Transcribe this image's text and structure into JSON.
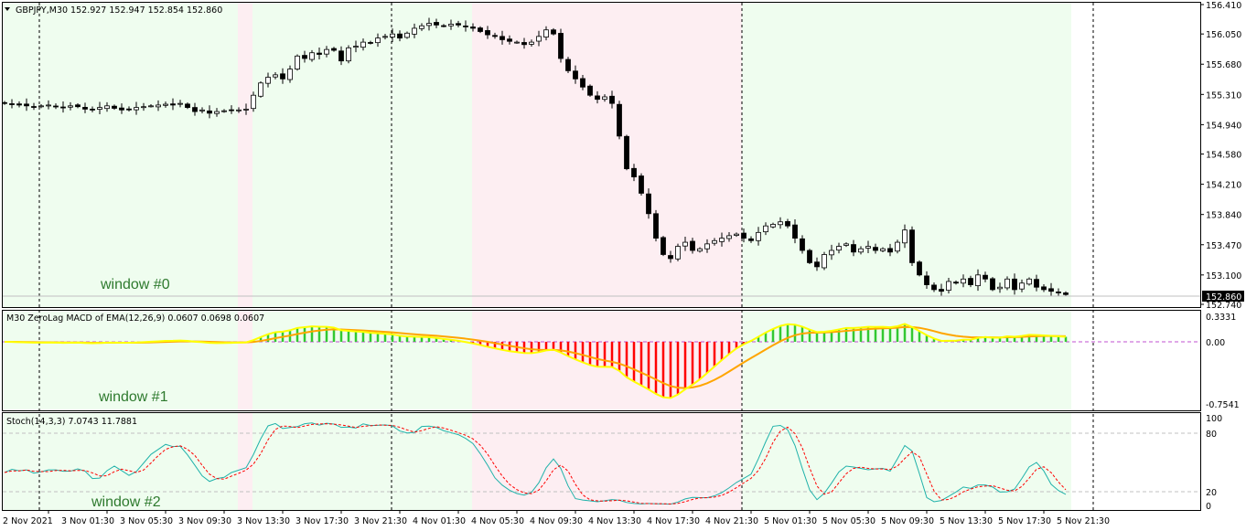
{
  "main": {
    "symbol_header": "GBPJPY,M30  152.927 152.947 152.854 152.860",
    "window_label": "window #0",
    "price_axis": [
      "156.410",
      "156.050",
      "155.680",
      "155.310",
      "154.940",
      "154.580",
      "154.210",
      "153.840",
      "153.470",
      "153.100",
      "152.740"
    ],
    "current_price": "152.860"
  },
  "macd": {
    "header": "M30 ZeroLag MACD of EMA(12,26,9) 0.0607 0.0698 0.0607",
    "window_label": "window  #1",
    "axis": [
      "0.3331",
      "0.00",
      "-0.7541"
    ]
  },
  "stoch": {
    "header": "Stoch(14,3,3) 7.0743 11.7881",
    "window_label": "window  #2",
    "axis": [
      "100",
      "80",
      "20",
      "0"
    ]
  },
  "time_axis": [
    "2 Nov 2021",
    "3 Nov 01:30",
    "3 Nov 05:30",
    "3 Nov 09:30",
    "3 Nov 13:30",
    "3 Nov 17:30",
    "3 Nov 21:30",
    "4 Nov 01:30",
    "4 Nov 05:30",
    "4 Nov 09:30",
    "4 Nov 13:30",
    "4 Nov 17:30",
    "4 Nov 21:30",
    "5 Nov 01:30",
    "5 Nov 05:30",
    "5 Nov 09:30",
    "5 Nov 13:30",
    "5 Nov 17:30",
    "5 Nov 21:30"
  ],
  "colors": {
    "green_zone": "#effdef",
    "red_zone": "#fdeef2",
    "macd_up": "#32c832",
    "macd_down": "#ff0000",
    "macd_main": "#ffff00",
    "macd_signal": "#ffa500",
    "stoch_main": "#20b2aa",
    "stoch_signal": "#ff0000",
    "window_label": "#2e7a2e"
  },
  "chart_data": {
    "type": "candlestick",
    "timeframe": "M30",
    "closes": [
      155.2,
      155.19,
      155.18,
      155.17,
      155.16,
      155.17,
      155.18,
      155.16,
      155.15,
      155.17,
      155.16,
      155.13,
      155.12,
      155.15,
      155.17,
      155.14,
      155.12,
      155.13,
      155.15,
      155.16,
      155.17,
      155.18,
      155.19,
      155.18,
      155.2,
      155.15,
      155.1,
      155.12,
      155.08,
      155.1,
      155.11,
      155.12,
      155.12,
      155.13,
      155.3,
      155.45,
      155.52,
      155.55,
      155.5,
      155.62,
      155.78,
      155.75,
      155.82,
      155.8,
      155.86,
      155.85,
      155.72,
      155.88,
      155.9,
      155.95,
      155.94,
      156.0,
      156.02,
      156.05,
      156.0,
      156.06,
      156.12,
      156.15,
      156.18,
      156.16,
      156.15,
      156.17,
      156.16,
      156.14,
      156.12,
      156.08,
      156.04,
      156.02,
      155.98,
      155.96,
      155.95,
      155.92,
      155.95,
      156.02,
      156.1,
      156.05,
      155.75,
      155.6,
      155.5,
      155.4,
      155.3,
      155.25,
      155.28,
      155.2,
      154.8,
      154.4,
      154.3,
      154.1,
      153.85,
      153.55,
      153.35,
      153.3,
      153.45,
      153.5,
      153.4,
      153.42,
      153.48,
      153.52,
      153.55,
      153.58,
      153.6,
      153.55,
      153.52,
      153.62,
      153.7,
      153.72,
      153.75,
      153.7,
      153.55,
      153.4,
      153.25,
      153.2,
      153.35,
      153.4,
      153.45,
      153.48,
      153.38,
      153.42,
      153.45,
      153.4,
      153.42,
      153.38,
      153.5,
      153.65,
      153.25,
      153.1,
      152.98,
      152.92,
      152.9,
      153.02,
      153.0,
      153.05,
      152.98,
      153.1,
      153.05,
      152.92,
      152.95,
      153.05,
      152.92,
      153.0,
      153.05,
      152.95,
      152.92,
      152.9,
      152.88,
      152.86
    ],
    "price_range": [
      152.74,
      156.41
    ],
    "macd_range": [
      -0.7541,
      0.3331
    ],
    "stoch_levels": [
      20,
      80
    ]
  }
}
